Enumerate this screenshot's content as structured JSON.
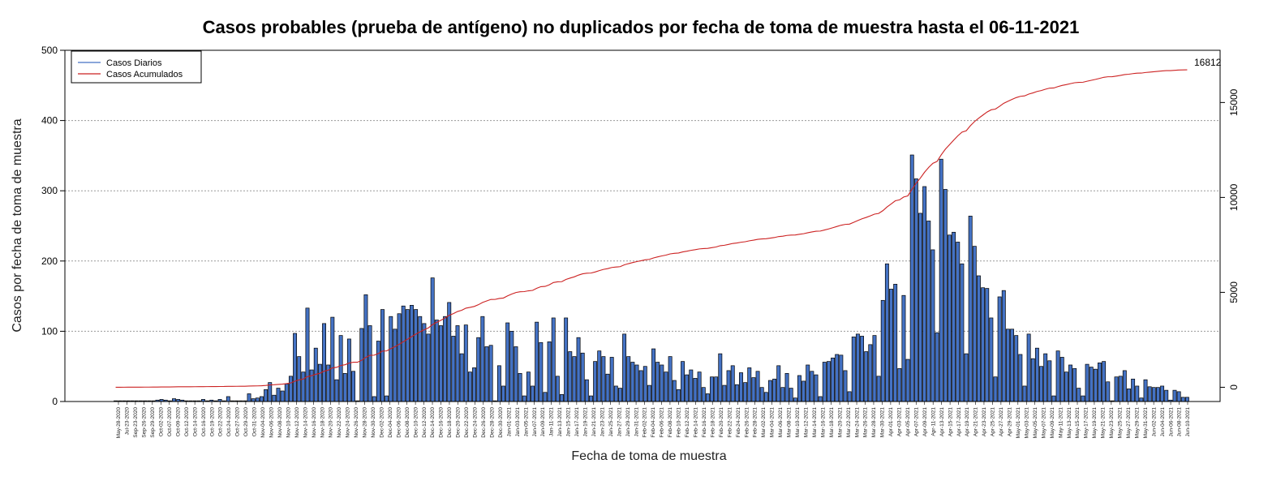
{
  "chart_data": {
    "type": "bar",
    "title": "Casos probables (prueba de antígeno) no duplicados por fecha de toma de muestra hasta el 06-11-2021",
    "xlabel": "Fecha de toma de muestra",
    "ylabel": "Casos por fecha de toma de muestra",
    "ylim": [
      0,
      500
    ],
    "yticks": [
      0,
      100,
      200,
      300,
      400,
      500
    ],
    "y2lim": [
      -750,
      17750
    ],
    "y2ticks": [
      0,
      5000,
      10000,
      15000
    ],
    "grid": "horizontal dotted",
    "legend_placement": "top-left",
    "final_cumulative_label": "16812",
    "x_tick_labels": [
      "May-28-2020",
      "Jul-23-2020",
      "Sep-23-2020",
      "Sep-26-2020",
      "Sep-29-2020",
      "Oct-02-2020",
      "Oct-07-2020",
      "Oct-09-2020",
      "Oct-12-2020",
      "Oct-14-2020",
      "Oct-16-2020",
      "Oct-19-2020",
      "Oct-22-2020",
      "Oct-24-2020",
      "Oct-27-2020",
      "Oct-29-2020",
      "Oct-31-2020",
      "Nov-04-2020",
      "Nov-06-2020",
      "Nov-08-2020",
      "Nov-10-2020",
      "Nov-12-2020",
      "Nov-14-2020",
      "Nov-16-2020",
      "Nov-18-2020",
      "Nov-20-2020",
      "Nov-22-2020",
      "Nov-24-2020",
      "Nov-26-2020",
      "Nov-28-2020",
      "Nov-30-2020",
      "Dec-02-2020",
      "Dec-04-2020",
      "Dec-06-2020",
      "Dec-08-2020",
      "Dec-10-2020",
      "Dec-12-2020",
      "Dec-14-2020",
      "Dec-16-2020",
      "Dec-18-2020",
      "Dec-20-2020",
      "Dec-22-2020",
      "Dec-24-2020",
      "Dec-26-2020",
      "Dec-28-2020",
      "Dec-30-2020",
      "Jan-01-2021",
      "Jan-03-2021",
      "Jan-05-2021",
      "Jan-07-2021",
      "Jan-09-2021",
      "Jan-11-2021",
      "Jan-13-2021",
      "Jan-15-2021",
      "Jan-17-2021",
      "Jan-19-2021",
      "Jan-21-2021",
      "Jan-23-2021",
      "Jan-25-2021",
      "Jan-27-2021",
      "Jan-29-2021",
      "Jan-31-2021",
      "Feb-02-2021",
      "Feb-04-2021",
      "Feb-06-2021",
      "Feb-08-2021",
      "Feb-10-2021",
      "Feb-12-2021",
      "Feb-14-2021",
      "Feb-16-2021",
      "Feb-18-2021",
      "Feb-20-2021",
      "Feb-22-2021",
      "Feb-24-2021",
      "Feb-26-2021",
      "Feb-28-2021",
      "Mar-02-2021",
      "Mar-04-2021",
      "Mar-06-2021",
      "Mar-08-2021",
      "Mar-10-2021",
      "Mar-12-2021",
      "Mar-14-2021",
      "Mar-16-2021",
      "Mar-18-2021",
      "Mar-20-2021",
      "Mar-22-2021",
      "Mar-24-2021",
      "Mar-26-2021",
      "Mar-28-2021",
      "Mar-30-2021",
      "Apr-01-2021",
      "Apr-03-2021",
      "Apr-05-2021",
      "Apr-07-2021",
      "Apr-09-2021",
      "Apr-11-2021",
      "Apr-13-2021",
      "Apr-15-2021",
      "Apr-17-2021",
      "Apr-19-2021",
      "Apr-21-2021",
      "Apr-23-2021",
      "Apr-25-2021",
      "Apr-27-2021",
      "Apr-29-2021",
      "May-01-2021",
      "May-03-2021",
      "May-05-2021",
      "May-07-2021",
      "May-09-2021",
      "May-11-2021",
      "May-13-2021",
      "May-15-2021",
      "May-17-2021",
      "May-19-2021",
      "May-21-2021",
      "May-23-2021",
      "May-25-2021",
      "May-27-2021",
      "May-29-2021",
      "May-31-2021",
      "Jun-02-2021",
      "Jun-04-2021",
      "Jun-06-2021",
      "Jun-08-2021",
      "Jun-10-2021"
    ],
    "series": [
      {
        "name": "Casos Diarios",
        "type": "bar",
        "color": "#4472C4",
        "values": [
          1,
          1,
          1,
          1,
          1,
          1,
          1,
          1,
          1,
          1,
          2,
          3,
          2,
          1,
          4,
          3,
          2,
          1,
          1,
          1,
          1,
          3,
          1,
          2,
          1,
          3,
          1,
          7,
          1,
          1,
          1,
          1,
          11,
          4,
          5,
          7,
          17,
          27,
          9,
          19,
          15,
          25,
          36,
          97,
          64,
          42,
          133,
          45,
          76,
          53,
          111,
          52,
          120,
          31,
          94,
          40,
          89,
          43,
          1,
          104,
          152,
          108,
          7,
          86,
          131,
          8,
          121,
          103,
          125,
          136,
          131,
          137,
          131,
          121,
          111,
          96,
          176,
          116,
          108,
          121,
          141,
          93,
          108,
          68,
          109,
          42,
          48,
          91,
          121,
          78,
          80,
          1,
          51,
          22,
          112,
          100,
          78,
          40,
          8,
          42,
          22,
          113,
          84,
          13,
          85,
          119,
          36,
          10,
          119,
          71,
          64,
          91,
          69,
          31,
          8,
          57,
          72,
          64,
          39,
          63,
          22,
          19,
          96,
          64,
          56,
          52,
          44,
          50,
          23,
          75,
          56,
          52,
          42,
          64,
          30,
          17,
          57,
          38,
          45,
          33,
          42,
          20,
          11,
          35,
          35,
          68,
          23,
          44,
          51,
          24,
          41,
          27,
          48,
          34,
          43,
          20,
          13,
          30,
          32,
          51,
          20,
          40,
          19,
          5,
          37,
          29,
          52,
          43,
          38,
          7,
          56,
          57,
          62,
          67,
          66,
          44,
          14,
          92,
          96,
          93,
          71,
          81,
          94,
          36,
          144,
          196,
          160,
          167,
          47,
          151,
          60,
          351,
          317,
          268,
          306,
          257,
          216,
          98,
          345,
          302,
          237,
          241,
          227,
          196,
          68,
          264,
          221,
          179,
          162,
          161,
          119,
          35,
          149,
          158,
          103,
          103,
          94,
          67,
          22,
          96,
          61,
          76,
          50,
          68,
          58,
          8,
          72,
          63,
          42,
          52,
          47,
          19,
          8,
          53,
          49,
          46,
          55,
          57,
          28,
          1,
          35,
          36,
          44,
          18,
          32,
          22,
          5,
          31,
          21,
          20,
          20,
          22,
          16,
          2,
          16,
          14,
          6,
          6
        ]
      },
      {
        "name": "Casos Acumulados",
        "type": "line",
        "color": "#CC2222",
        "axis": "right"
      }
    ]
  }
}
